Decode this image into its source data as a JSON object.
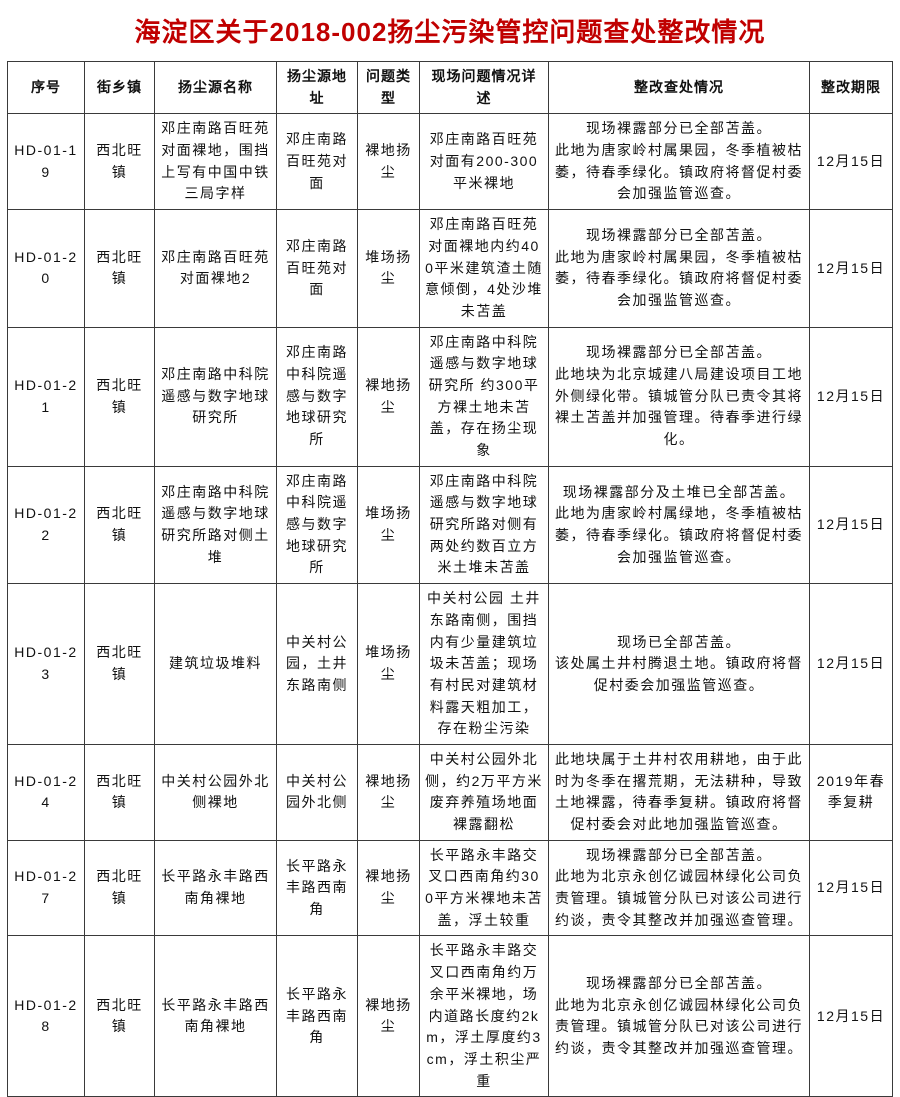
{
  "title": "海淀区关于2018-002扬尘污染管控问题查处整改情况",
  "colors": {
    "title": "#c00000",
    "row_id": "#eb3323",
    "border": "#3a3a3a"
  },
  "table": {
    "columns": [
      "序号",
      "街乡镇",
      "扬尘源名称",
      "扬尘源地址",
      "问题类型",
      "现场问题情况详述",
      "整改查处情况",
      "整改期限"
    ],
    "rows": [
      {
        "id": "HD-01-19",
        "town": "西北旺镇",
        "source_name": "邓庄南路百旺苑对面裸地，围挡上写有中国中铁三局字样",
        "source_address": "邓庄南路百旺苑对面",
        "problem_type": "裸地扬尘",
        "problem_detail": "邓庄南路百旺苑对面有200-300平米裸地",
        "rectification": "现场裸露部分已全部苫盖。\n此地为唐家岭村属果园，冬季植被枯萎，待春季绿化。镇政府将督促村委会加强监管巡查。",
        "deadline": "12月15日"
      },
      {
        "id": "HD-01-20",
        "town": "西北旺镇",
        "source_name": "邓庄南路百旺苑对面裸地2",
        "source_address": "邓庄南路百旺苑对面",
        "problem_type": "堆场扬尘",
        "problem_detail": "邓庄南路百旺苑对面裸地内约400平米建筑渣土随意倾倒，4处沙堆未苫盖",
        "rectification": "现场裸露部分已全部苫盖。\n此地为唐家岭村属果园，冬季植被枯萎，待春季绿化。镇政府将督促村委会加强监管巡查。",
        "deadline": "12月15日"
      },
      {
        "id": "HD-01-21",
        "town": "西北旺镇",
        "source_name": "邓庄南路中科院遥感与数字地球研究所",
        "source_address": "邓庄南路中科院遥感与数字地球研究所",
        "problem_type": "裸地扬尘",
        "problem_detail": "邓庄南路中科院遥感与数字地球研究所 约300平方裸土地未苫盖，存在扬尘现象",
        "rectification": "现场裸露部分已全部苫盖。\n此地块为北京城建八局建设项目工地外侧绿化带。镇城管分队已责令其将裸土苫盖并加强管理。待春季进行绿化。",
        "deadline": "12月15日"
      },
      {
        "id": "HD-01-22",
        "town": "西北旺镇",
        "source_name": "邓庄南路中科院遥感与数字地球研究所路对侧土堆",
        "source_address": "邓庄南路中科院遥感与数字地球研究所",
        "problem_type": "堆场扬尘",
        "problem_detail": "邓庄南路中科院遥感与数字地球研究所路对侧有两处约数百立方米土堆未苫盖",
        "rectification": "现场裸露部分及土堆已全部苫盖。\n此地为唐家岭村属绿地，冬季植被枯萎，待春季绿化。镇政府将督促村委会加强监管巡查。",
        "deadline": "12月15日"
      },
      {
        "id": "HD-01-23",
        "town": "西北旺镇",
        "source_name": "建筑垃圾堆料",
        "source_address": "中关村公园，土井东路南侧",
        "problem_type": "堆场扬尘",
        "problem_detail": "中关村公园 土井东路南侧，围挡内有少量建筑垃圾未苫盖；现场有村民对建筑材料露天粗加工，存在粉尘污染",
        "rectification": "现场已全部苫盖。\n该处属土井村腾退土地。镇政府将督促村委会加强监管巡查。",
        "deadline": "12月15日"
      },
      {
        "id": "HD-01-24",
        "town": "西北旺镇",
        "source_name": "中关村公园外北侧裸地",
        "source_address": "中关村公园外北侧",
        "problem_type": "裸地扬尘",
        "problem_detail": "中关村公园外北侧，约2万平方米废弃养殖场地面裸露翻松",
        "rectification": "此地块属于土井村农用耕地，由于此时为冬季在撂荒期，无法耕种，导致土地裸露，待春季复耕。镇政府将督促村委会对此地加强监管巡查。",
        "deadline": "2019年春季复耕"
      },
      {
        "id": "HD-01-27",
        "town": "西北旺镇",
        "source_name": "长平路永丰路西南角裸地",
        "source_address": "长平路永丰路西南角",
        "problem_type": "裸地扬尘",
        "problem_detail": "长平路永丰路交叉口西南角约300平方米裸地未苫盖，浮土较重",
        "rectification": "现场裸露部分已全部苫盖。\n此地为北京永创亿诚园林绿化公司负责管理。镇城管分队已对该公司进行约谈，责令其整改并加强巡查管理。",
        "deadline": "12月15日"
      },
      {
        "id": "HD-01-28",
        "town": "西北旺镇",
        "source_name": "长平路永丰路西南角裸地",
        "source_address": "长平路永丰路西南角",
        "problem_type": "裸地扬尘",
        "problem_detail": "长平路永丰路交叉口西南角约万余平米裸地，场内道路长度约2km，浮土厚度约3cm，浮土积尘严重",
        "rectification": "现场裸露部分已全部苫盖。\n此地为北京永创亿诚园林绿化公司负责管理。镇城管分队已对该公司进行约谈，责令其整改并加强巡查管理。",
        "deadline": "12月15日"
      }
    ]
  }
}
